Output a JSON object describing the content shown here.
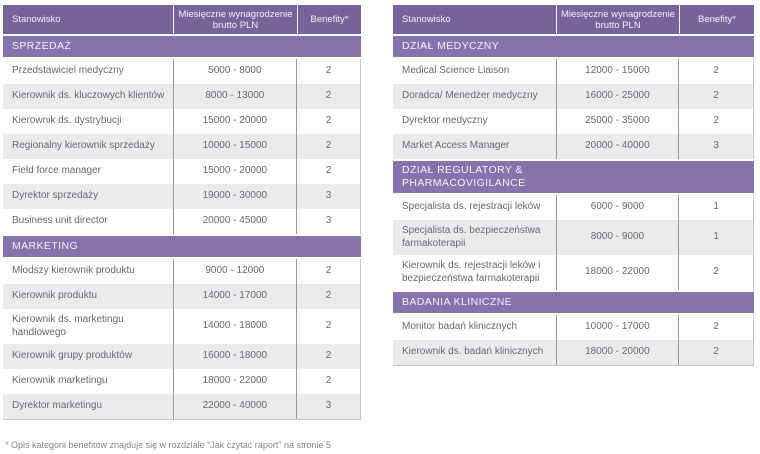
{
  "colors": {
    "header_bg": "#74649B",
    "section_band_bg": "#8573AD",
    "row_alt_bg": "#EBEBEE",
    "row_text": "#67676C",
    "column_divider": "#98989C",
    "footnote_text": "#85858A"
  },
  "footnote": "* Opis kategorii benefitów znajduje się w rozdziale \"Jak czytać raport\" na stronie 5",
  "tables": [
    {
      "id": "left",
      "columns": [
        "Stanowisko",
        "Miesięczne wynagrodzenie brutto PLN",
        "Benefity*"
      ],
      "sections": [
        {
          "title": "SPRZEDAŻ",
          "rows": [
            {
              "position": "Przedstawiciel medyczny",
              "salary": "5000 - 8000",
              "benefits": "2"
            },
            {
              "position": "Kierownik ds. kluczowych klientów",
              "salary": "8000 - 13000",
              "benefits": "2"
            },
            {
              "position": "Kierownik ds. dystrybucji",
              "salary": "15000 - 20000",
              "benefits": "2"
            },
            {
              "position": "Regionalny kierownik sprzedaży",
              "salary": "10000 - 15000",
              "benefits": "2"
            },
            {
              "position": "Field force manager",
              "salary": "15000 - 20000",
              "benefits": "2"
            },
            {
              "position": "Dyrektor sprzedaży",
              "salary": "19000 - 30000",
              "benefits": "3"
            },
            {
              "position": "Business unit director",
              "salary": "20000 - 45000",
              "benefits": "3"
            }
          ]
        },
        {
          "title": "MARKETING",
          "rows": [
            {
              "position": "Młodszy kierownik produktu",
              "salary": "9000 - 12000",
              "benefits": "2"
            },
            {
              "position": "Kierownik produktu",
              "salary": "14000 - 17000",
              "benefits": "2"
            },
            {
              "position": "Kierownik ds. marketingu handlowego",
              "salary": "14000 - 18000",
              "benefits": "2"
            },
            {
              "position": "Kierownik grupy produktów",
              "salary": "16000 - 18000",
              "benefits": "2"
            },
            {
              "position": "Kierownik marketingu",
              "salary": "18000 - 22000",
              "benefits": "2"
            },
            {
              "position": "Dyrektor marketingu",
              "salary": "22000 - 40000",
              "benefits": "3"
            }
          ]
        }
      ]
    },
    {
      "id": "right",
      "columns": [
        "Stanowisko",
        "Miesięczne wynagrodzenie brutto PLN",
        "Benefity*"
      ],
      "sections": [
        {
          "title": "DZIAŁ MEDYCZNY",
          "rows": [
            {
              "position": "Medical Science Liaison",
              "salary": "12000 - 15000",
              "benefits": "2"
            },
            {
              "position": "Doradca/ Menedżer medyczny",
              "salary": "16000 - 25000",
              "benefits": "2"
            },
            {
              "position": "Dyrektor medyczny",
              "salary": "25000 - 35000",
              "benefits": "2"
            },
            {
              "position": "Market Access Manager",
              "salary": "20000 - 40000",
              "benefits": "3"
            }
          ]
        },
        {
          "title": "DZIAŁ REGULATORY & PHARMACOVIGILANCE",
          "rows": [
            {
              "position": "Specjalista ds. rejestracji leków",
              "salary": "6000 - 9000",
              "benefits": "1"
            },
            {
              "position": "Specjalista ds. bezpieczeństwa farmakoterapii",
              "salary": "8000 - 9000",
              "benefits": "1"
            },
            {
              "position": "Kierownik ds. rejestracji leków i bezpieczeństwa farmakoterapii",
              "salary": "18000 - 22000",
              "benefits": "2"
            }
          ]
        },
        {
          "title": "BADANIA KLINICZNE",
          "rows": [
            {
              "position": "Monitor badań klinicznych",
              "salary": "10000 - 17000",
              "benefits": "2"
            },
            {
              "position": "Kierownik ds. badań klinicznych",
              "salary": "18000 - 20000",
              "benefits": "2"
            }
          ]
        }
      ]
    }
  ]
}
